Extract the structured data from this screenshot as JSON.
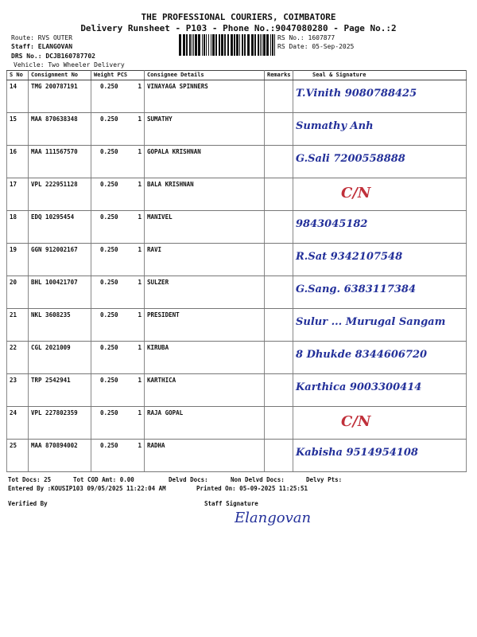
{
  "header": {
    "title": "THE PROFESSIONAL COURIERS, COIMBATORE",
    "subtitle": "Delivery Runsheet - P103 - Phone No.:9047080280 - Page No.:2",
    "route": "Route: RVS OUTER",
    "staff": "Staff: ELANGOVAN",
    "drs_no": "DRS No.: DCJB160787702",
    "vehicle": "Vehicle: Two Wheeler Delivery",
    "rs_no": "RS No.: 1607877",
    "rs_date": "RS Date: 05-Sep-2025"
  },
  "table": {
    "columns": [
      "S No",
      "Consignment No",
      "Weight  PCS",
      "Consignee Details",
      "Remarks",
      "Seal & Signature"
    ],
    "rows": [
      {
        "sno": "14",
        "cons": "TMG 200787191",
        "wt": "0.250",
        "pcs": "1",
        "name": "VINAYAGA SPINNERS",
        "sig": "T.Vinith  9080788425"
      },
      {
        "sno": "15",
        "cons": "MAA 870638348",
        "wt": "0.250",
        "pcs": "1",
        "name": "SUMATHY",
        "sig": "Sumathy Anh"
      },
      {
        "sno": "16",
        "cons": "MAA 111567570",
        "wt": "0.250",
        "pcs": "1",
        "name": "GOPALA KRISHNAN",
        "sig": "G.Sali  7200558888"
      },
      {
        "sno": "17",
        "cons": "VPL 222951128",
        "wt": "0.250",
        "pcs": "1",
        "name": "BALA KRISHNAN",
        "sig": "C/N"
      },
      {
        "sno": "18",
        "cons": "EDQ 10295454",
        "wt": "0.250",
        "pcs": "1",
        "name": "MANIVEL",
        "sig": "9843045182"
      },
      {
        "sno": "19",
        "cons": "GGN 912002167",
        "wt": "0.250",
        "pcs": "1",
        "name": "RAVI",
        "sig": "R.Sat  9342107548"
      },
      {
        "sno": "20",
        "cons": "BHL 100421707",
        "wt": "0.250",
        "pcs": "1",
        "name": "SULZER",
        "sig": "G.Sang.  6383117384"
      },
      {
        "sno": "21",
        "cons": "NKL 3608235",
        "wt": "0.250",
        "pcs": "1",
        "name": "PRESIDENT",
        "sig": "Sulur ... Murugal Sangam"
      },
      {
        "sno": "22",
        "cons": "CGL 2021009",
        "wt": "0.250",
        "pcs": "1",
        "name": "KIRUBA",
        "sig": "8 Dhukde  8344606720"
      },
      {
        "sno": "23",
        "cons": "TRP 2542941",
        "wt": "0.250",
        "pcs": "1",
        "name": "KARTHICA",
        "sig": "Karthica 9003300414"
      },
      {
        "sno": "24",
        "cons": "VPL 227802359",
        "wt": "0.250",
        "pcs": "1",
        "name": "RAJA GOPAL",
        "sig": "C/N"
      },
      {
        "sno": "25",
        "cons": "MAA 870894002",
        "wt": "0.250",
        "pcs": "1",
        "name": "RADHA",
        "sig": "Kabisha 9514954108"
      }
    ]
  },
  "footer": {
    "tot_docs": "Tot Docs:  25",
    "tot_cod": "Tot COD Amt:   0.00",
    "delvd": "Delvd Docs:",
    "non_delvd": "Non Delvd Docs:",
    "delvy_pts": "Delvy Pts:",
    "entered_by": "Entered By :KOUSIP103 09/05/2025 11:22:04 AM",
    "printed_on": "Printed On: 05-09-2025 11:25:51",
    "verified_by": "Verified By",
    "staff_signature": "Staff Signature",
    "staff_sig_hand": "Elangovan"
  },
  "colors": {
    "ink": "#23309a"
  }
}
